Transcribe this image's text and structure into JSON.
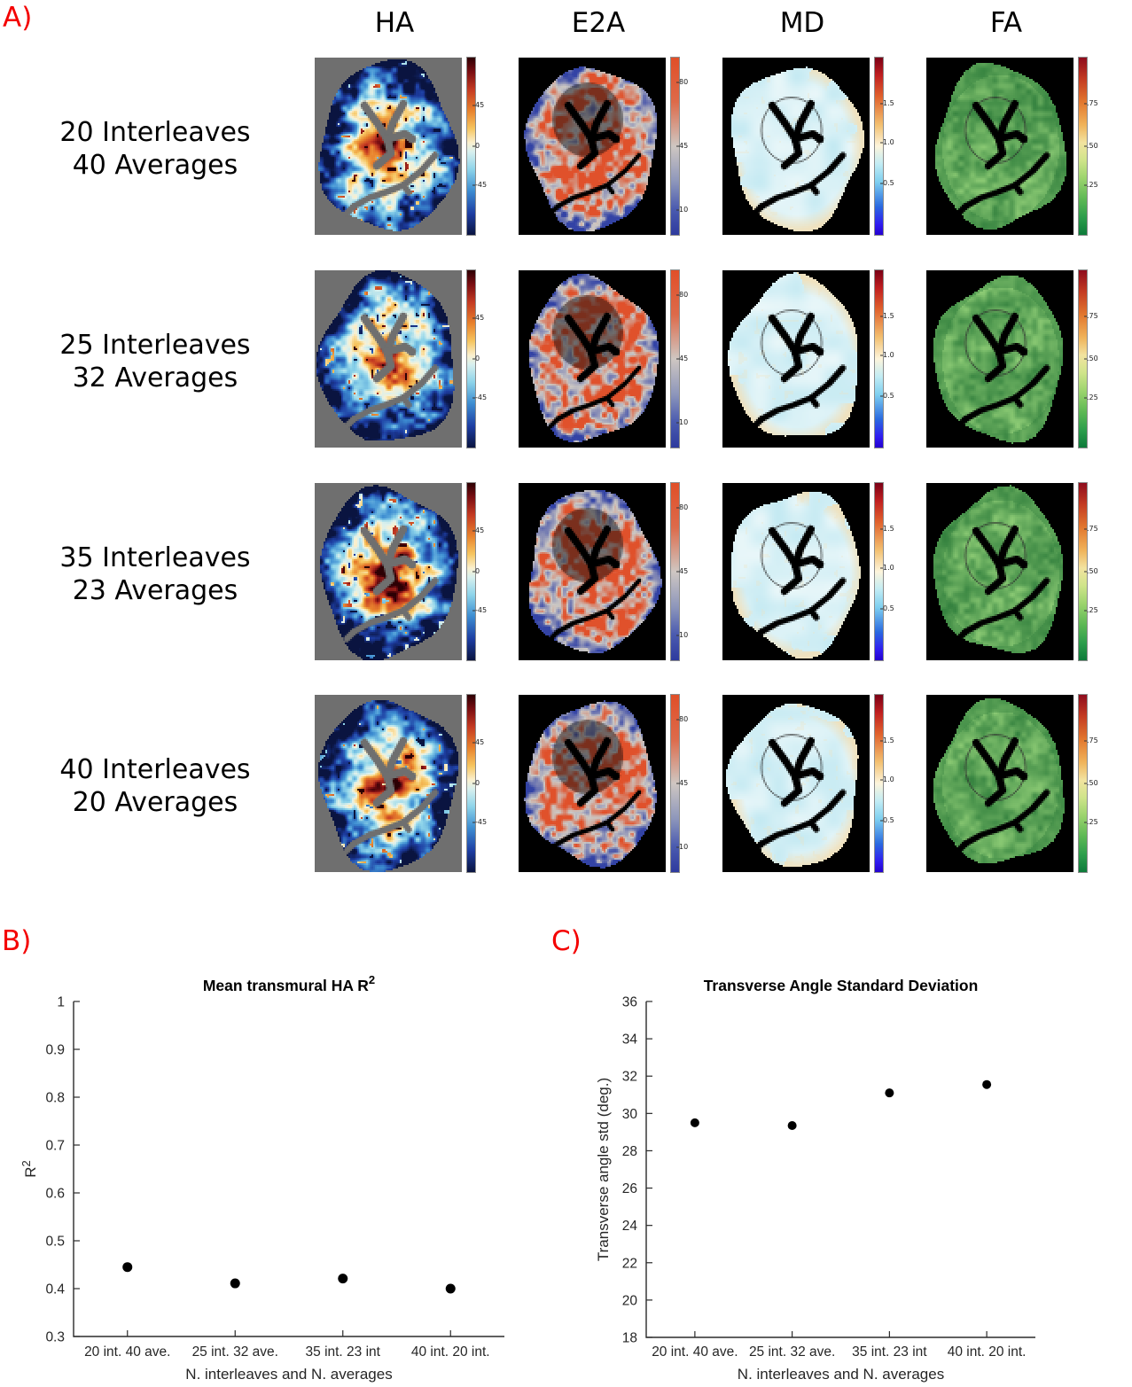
{
  "figure": {
    "background": "#ffffff",
    "panel_label_color": "#f40000"
  },
  "panel_a": {
    "label": "A)",
    "columns": [
      "HA",
      "E2A",
      "MD",
      "FA"
    ],
    "rows": [
      {
        "line1": "20 Interleaves",
        "line2": "40 Averages"
      },
      {
        "line1": "25 Interleaves",
        "line2": "32 Averages"
      },
      {
        "line1": "35 Interleaves",
        "line2": "23 Averages"
      },
      {
        "line1": "40 Interleaves",
        "line2": "20 Averages"
      }
    ],
    "colorbars": {
      "HA": {
        "gradient": [
          [
            "#2d0004",
            0
          ],
          [
            "#7a0e12",
            8
          ],
          [
            "#c43a22",
            18
          ],
          [
            "#e8822d",
            30
          ],
          [
            "#f6c55f",
            40
          ],
          [
            "#faf0cf",
            48
          ],
          [
            "#d9f0ee",
            53
          ],
          [
            "#8ed4ea",
            63
          ],
          [
            "#3e8ed2",
            75
          ],
          [
            "#1d3da2",
            88
          ],
          [
            "#0a1440",
            100
          ]
        ],
        "ticks": [
          {
            "label": "45",
            "pos": 27
          },
          {
            "label": "0",
            "pos": 50
          },
          {
            "label": "-45",
            "pos": 72
          }
        ]
      },
      "E2A": {
        "gradient": [
          [
            "#e14f28",
            0
          ],
          [
            "#dd6a4a",
            25
          ],
          [
            "#cfc7c2",
            50
          ],
          [
            "#8d96bb",
            70
          ],
          [
            "#4c5cb0",
            85
          ],
          [
            "#2e3a9e",
            100
          ]
        ],
        "ticks": [
          {
            "label": "80",
            "pos": 14
          },
          {
            "label": "45",
            "pos": 50
          },
          {
            "label": "10",
            "pos": 86
          }
        ]
      },
      "MD": {
        "gradient": [
          [
            "#7a0016",
            0
          ],
          [
            "#c01f20",
            10
          ],
          [
            "#e0622d",
            22
          ],
          [
            "#f3c171",
            38
          ],
          [
            "#fdf5dc",
            50
          ],
          [
            "#c2ecf4",
            60
          ],
          [
            "#7fd0f0",
            70
          ],
          [
            "#2a6ae0",
            84
          ],
          [
            "#2f1cf0",
            94
          ],
          [
            "#2400cf",
            100
          ]
        ],
        "ticks": [
          {
            "label": "1.5",
            "pos": 26
          },
          {
            "label": "1.0",
            "pos": 48
          },
          {
            "label": "0.5",
            "pos": 71
          }
        ]
      },
      "FA": {
        "gradient": [
          [
            "#8e0c1d",
            0
          ],
          [
            "#c33b22",
            12
          ],
          [
            "#e2772e",
            25
          ],
          [
            "#f0b35a",
            38
          ],
          [
            "#f2e3a0",
            48
          ],
          [
            "#cfe48a",
            58
          ],
          [
            "#9cd46e",
            68
          ],
          [
            "#5cb854",
            80
          ],
          [
            "#2d9e4c",
            90
          ],
          [
            "#0d7a3a",
            100
          ]
        ],
        "ticks": [
          {
            "label": ".75",
            "pos": 26
          },
          {
            "label": ".50",
            "pos": 50
          },
          {
            "label": ".25",
            "pos": 72
          }
        ]
      }
    },
    "map_palette": {
      "ha_background": "#6f6f6f",
      "map_background": "#000000",
      "ha_stops": [
        [
          0,
          "#0a1440"
        ],
        [
          0.12,
          "#1d3da2"
        ],
        [
          0.25,
          "#3e8ed2"
        ],
        [
          0.37,
          "#8ed4ea"
        ],
        [
          0.46,
          "#dcf0ec"
        ],
        [
          0.52,
          "#faf0cf"
        ],
        [
          0.62,
          "#f6c55f"
        ],
        [
          0.72,
          "#e8822d"
        ],
        [
          0.84,
          "#c43a22"
        ],
        [
          0.93,
          "#7a0e12"
        ],
        [
          1,
          "#2d0004"
        ]
      ],
      "e2a": {
        "red": "#e0512b",
        "gray": "#cbc7c3",
        "blue": "#3343a5"
      },
      "md": {
        "base": "#c3e9f2",
        "light": "#eaf7f9",
        "cream": "#f2dfb6"
      },
      "fa": {
        "dark": "#35823f",
        "base": "#4fa551",
        "light": "#8bca74"
      }
    }
  },
  "chart_data": [
    {
      "id": "B",
      "panel_label": "B)",
      "type": "scatter",
      "title_main": "Mean transmural HA R",
      "title_sup": "2",
      "ylabel_main": "R",
      "ylabel_sup": "2",
      "xlabel": "N. interleaves and N. averages",
      "categories": [
        "20 int. 40 ave.",
        "25 int. 32 ave.",
        "35 int. 23 int",
        "40 int. 20 int."
      ],
      "values": [
        0.445,
        0.411,
        0.421,
        0.4
      ],
      "ylim": [
        0.3,
        1
      ],
      "yticks": [
        "0.3",
        "0.4",
        "0.5",
        "0.6",
        "0.7",
        "0.8",
        "0.9",
        "1"
      ],
      "grid": false,
      "legend": null,
      "marker_color": "#000000"
    },
    {
      "id": "C",
      "panel_label": "C)",
      "type": "scatter",
      "title_main": "Transverse Angle Standard Deviation",
      "title_sup": "",
      "ylabel_main": "Transverse angle std (deg.)",
      "ylabel_sup": "",
      "xlabel": "N. interleaves and N. averages",
      "categories": [
        "20 int. 40 ave.",
        "25 int. 32 ave.",
        "35 int. 23 int",
        "40 int. 20 int."
      ],
      "values": [
        29.5,
        29.35,
        31.1,
        31.55
      ],
      "ylim": [
        18,
        36
      ],
      "yticks": [
        "18",
        "20",
        "22",
        "24",
        "26",
        "28",
        "30",
        "32",
        "34",
        "36"
      ],
      "grid": false,
      "legend": null,
      "marker_color": "#000000"
    }
  ]
}
